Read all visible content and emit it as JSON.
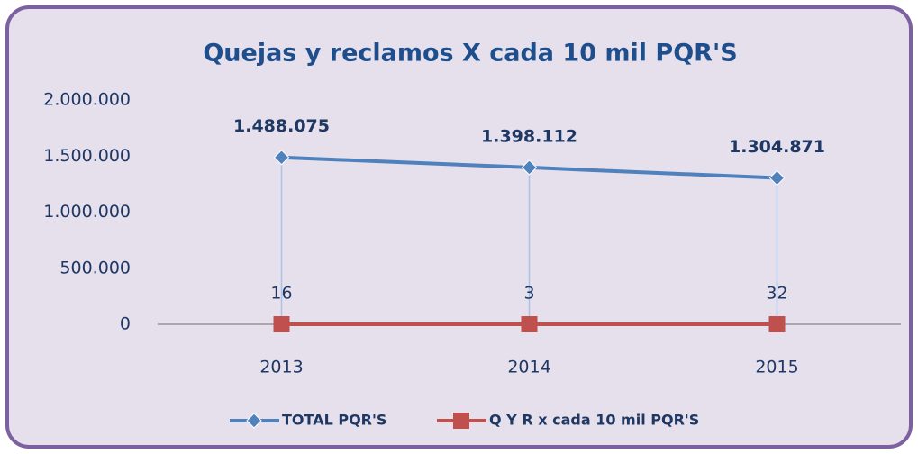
{
  "chart_data": {
    "type": "line",
    "title": "Quejas y reclamos X cada 10 mil PQR'S",
    "categories": [
      "2013",
      "2014",
      "2015"
    ],
    "series": [
      {
        "name": "TOTAL PQR'S",
        "color": "#4f81bd",
        "values": [
          1488075,
          1398112,
          1304871
        ],
        "value_labels": [
          "1.488.075",
          "1.398.112",
          "1.304.871"
        ]
      },
      {
        "name": "Q Y R x cada 10 mil PQR'S",
        "color": "#c0504d",
        "values": [
          16,
          3,
          32
        ]
      }
    ],
    "ylim": [
      0,
      2000000
    ],
    "yticks": [
      0,
      {
        "value": 500000,
        "label": "500.000"
      },
      {
        "value": 1000000,
        "label": "1.000.000"
      },
      {
        "value": 1500000,
        "label": "1.500.000"
      },
      {
        "value": 2000000,
        "label": "2.000.000"
      }
    ],
    "grid": false,
    "legend": "bottom"
  }
}
